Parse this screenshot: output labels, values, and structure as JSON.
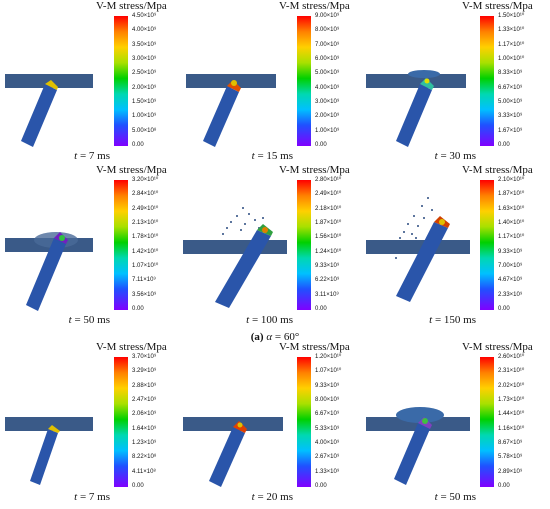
{
  "caption": {
    "label": "(a)",
    "alpha": "α",
    "value": "= 60°"
  },
  "panels": [
    {
      "title": "V-M stress/Mpa",
      "t_label": "t",
      "t_value": "= 7 ms",
      "ticks": [
        "4.50×10⁹",
        "4.00×10⁹",
        "3.50×10⁹",
        "3.00×10⁹",
        "2.50×10⁹",
        "2.00×10⁹",
        "1.50×10⁹",
        "1.00×10⁹",
        "5.00×10⁸",
        "0.00"
      ]
    },
    {
      "title": "V-M stress/Mpa",
      "t_label": "t",
      "t_value": "= 15 ms",
      "ticks": [
        "9.00×10⁹",
        "8.00×10⁹",
        "7.00×10⁹",
        "6.00×10⁹",
        "5.00×10⁹",
        "4.00×10⁹",
        "3.00×10⁹",
        "2.00×10⁹",
        "1.00×10⁹",
        "0.00"
      ]
    },
    {
      "title": "V-M stress/Mpa",
      "t_label": "t",
      "t_value": "= 30 ms",
      "ticks": [
        "1.50×10¹⁰",
        "1.33×10¹⁰",
        "1.17×10¹⁰",
        "1.00×10¹⁰",
        "8.33×10⁹",
        "6.67×10⁹",
        "5.00×10⁹",
        "3.33×10⁹",
        "1.67×10⁹",
        "0.00"
      ]
    },
    {
      "title": "V-M stress/Mpa",
      "t_label": "t",
      "t_value": "= 50 ms",
      "ticks": [
        "3.20×10¹⁰",
        "2.84×10¹⁰",
        "2.49×10¹⁰",
        "2.13×10¹⁰",
        "1.78×10¹⁰",
        "1.42×10¹⁰",
        "1.07×10¹⁰",
        "7.11×10⁹",
        "3.56×10⁹",
        "0.00"
      ]
    },
    {
      "title": "V-M stress/Mpa",
      "t_label": "t",
      "t_value": "= 100 ms",
      "ticks": [
        "2.80×10¹⁰",
        "2.49×10¹⁰",
        "2.18×10¹⁰",
        "1.87×10¹⁰",
        "1.56×10¹⁰",
        "1.24×10¹⁰",
        "9.33×10⁹",
        "6.22×10⁹",
        "3.11×10⁹",
        "0.00"
      ]
    },
    {
      "title": "V-M stress/Mpa",
      "t_label": "t",
      "t_value": "= 150 ms",
      "ticks": [
        "2.10×10¹⁰",
        "1.87×10¹⁰",
        "1.63×10¹⁰",
        "1.40×10¹⁰",
        "1.17×10¹⁰",
        "9.33×10⁹",
        "7.00×10⁹",
        "4.67×10⁹",
        "2.33×10⁹",
        "0.00"
      ]
    },
    {
      "title": "V-M stress/Mpa",
      "t_label": "t",
      "t_value": "= 7 ms",
      "ticks": [
        "3.70×10⁹",
        "3.29×10⁹",
        "2.88×10⁹",
        "2.47×10⁹",
        "2.06×10⁹",
        "1.64×10⁹",
        "1.23×10⁹",
        "8.22×10⁸",
        "4.11×10⁸",
        "0.00"
      ]
    },
    {
      "title": "V-M stress/Mpa",
      "t_label": "t",
      "t_value": "= 20 ms",
      "ticks": [
        "1.20×10¹⁰",
        "1.07×10¹⁰",
        "9.33×10⁹",
        "8.00×10⁹",
        "6.67×10⁹",
        "5.33×10⁹",
        "4.00×10⁹",
        "2.67×10⁹",
        "1.33×10⁹",
        "0.00"
      ]
    },
    {
      "title": "V-M stress/Mpa",
      "t_label": "t",
      "t_value": "= 50 ms",
      "ticks": [
        "2.60×10¹⁰",
        "2.31×10¹⁰",
        "2.02×10¹⁰",
        "1.73×10¹⁰",
        "1.44×10¹⁰",
        "1.16×10¹⁰",
        "8.67×10⁹",
        "5.78×10⁹",
        "2.89×10⁹",
        "0.00"
      ]
    }
  ]
}
